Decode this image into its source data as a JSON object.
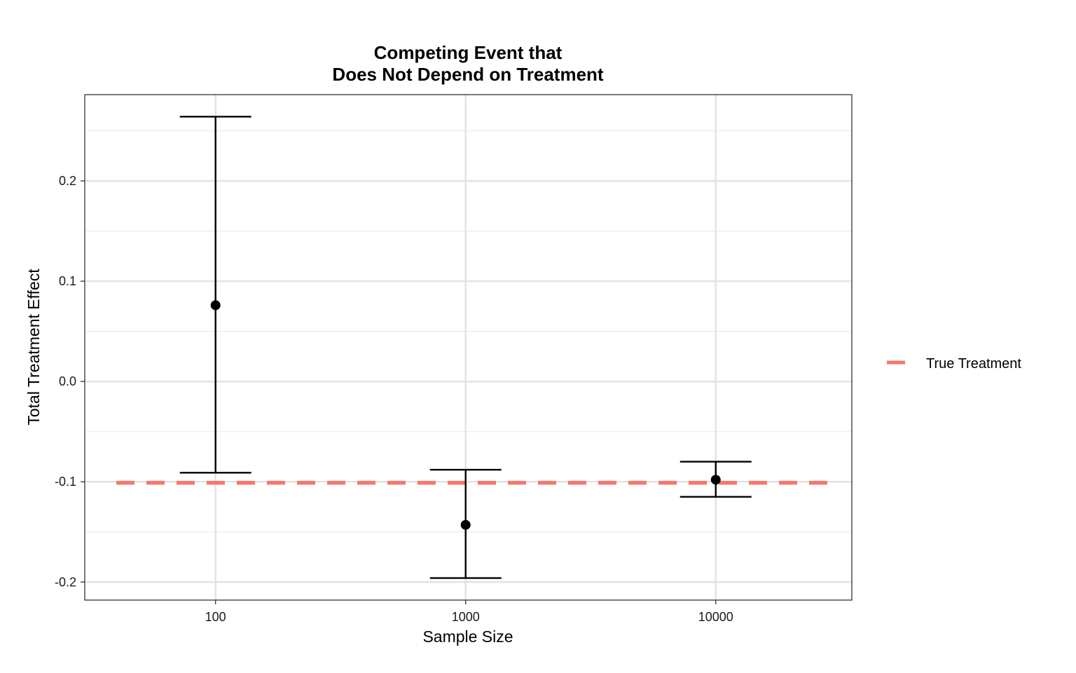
{
  "chart_data": {
    "type": "errorbar",
    "title_line1": "Competing Event that",
    "title_line2": "Does Not Depend on Treatment",
    "xlabel": "Sample Size",
    "ylabel": "Total Treatment Effect",
    "x_scale": "log10",
    "x_categories": [
      "100",
      "1000",
      "10000"
    ],
    "x_values": [
      100,
      1000,
      10000
    ],
    "xlim": [
      30,
      35000
    ],
    "ylim": [
      -0.218,
      0.286
    ],
    "y_ticks": [
      -0.2,
      -0.1,
      0.0,
      0.1,
      0.2
    ],
    "y_tick_labels": [
      "-0.2",
      "-0.1",
      "0.0",
      "0.1",
      "0.2"
    ],
    "grid": true,
    "points": [
      {
        "x": 100,
        "estimate": 0.076,
        "lower": -0.091,
        "upper": 0.264
      },
      {
        "x": 1000,
        "estimate": -0.143,
        "lower": -0.196,
        "upper": -0.088
      },
      {
        "x": 10000,
        "estimate": -0.098,
        "lower": -0.115,
        "upper": -0.08
      }
    ],
    "reference_line": {
      "value": -0.101,
      "label": "True Treatment",
      "color": "#F8766D",
      "style": "dashed"
    },
    "legend_position": "right"
  }
}
